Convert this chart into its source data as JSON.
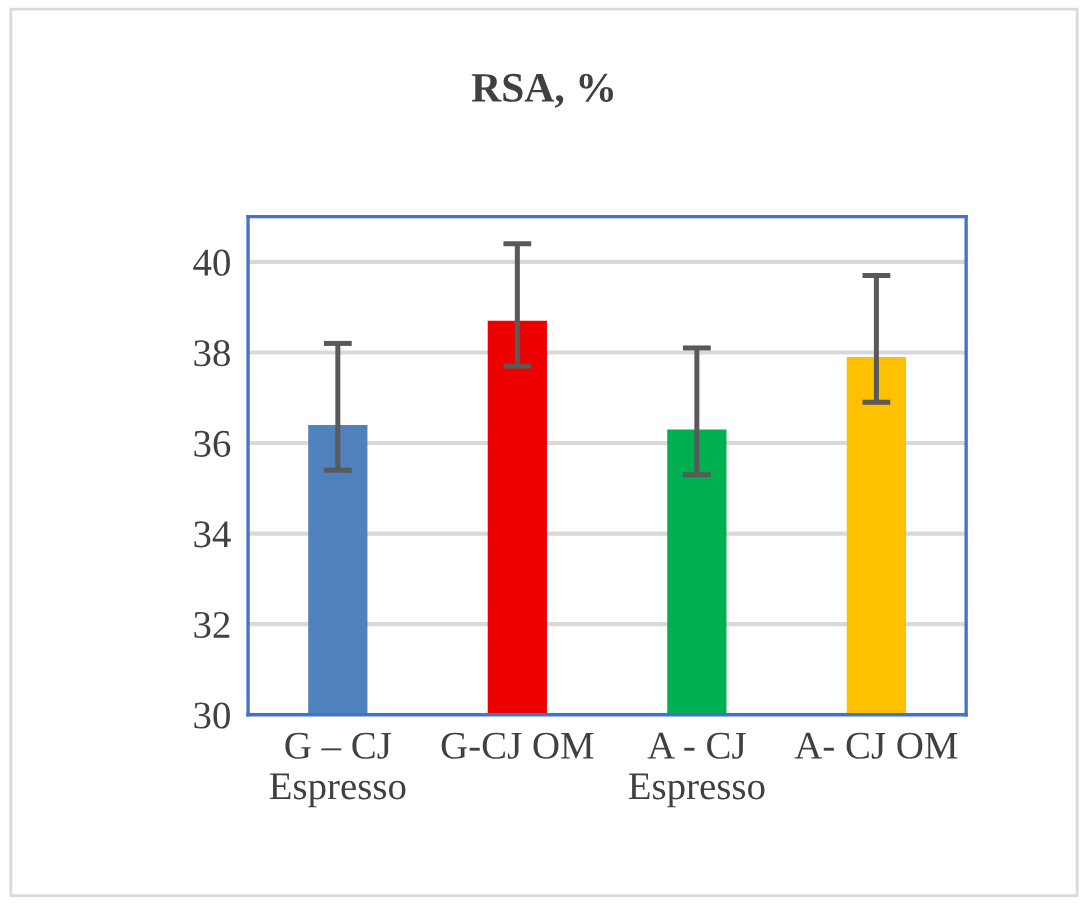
{
  "chart_data": {
    "type": "bar",
    "title": "RSA, %",
    "categories": [
      "G – CJ\nEspresso",
      "G-CJ OM",
      "A - CJ\nEspresso",
      "A- CJ OM"
    ],
    "values": [
      36.4,
      38.7,
      36.3,
      37.9
    ],
    "colors": [
      "#4f81bd",
      "#ec0000",
      "#00b050",
      "#ffc000"
    ],
    "errors": [
      [
        35.4,
        38.2
      ],
      [
        37.7,
        40.4
      ],
      [
        35.3,
        38.1
      ],
      [
        36.9,
        39.7
      ]
    ],
    "ylim": [
      30,
      41
    ],
    "yticks": [
      30,
      32,
      34,
      36,
      38,
      40
    ],
    "grid": "y"
  }
}
